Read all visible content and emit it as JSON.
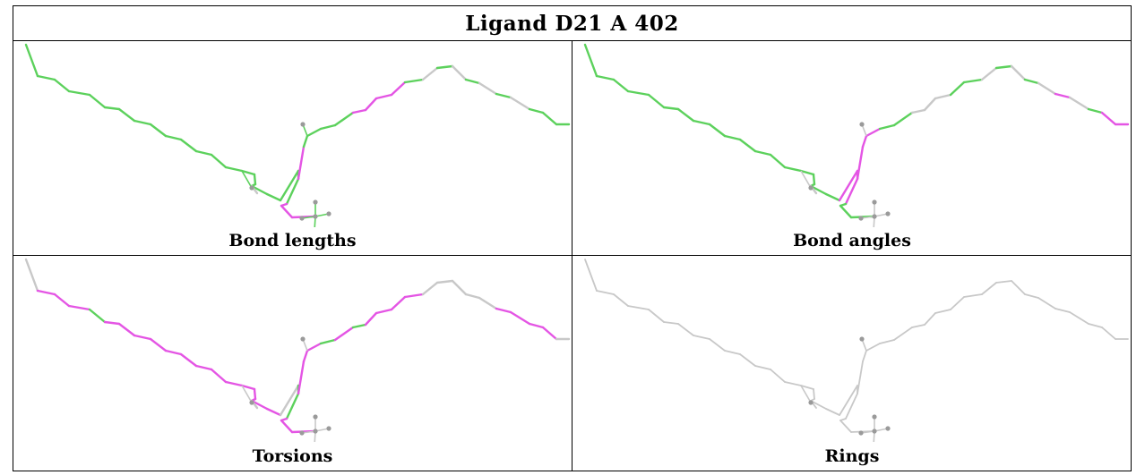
{
  "title": "Ligand D21 A 402",
  "colors": {
    "ok": "#5cd15c",
    "outlier": "#e455e4",
    "none": "#c8c8c8",
    "atom": "#9a9a9a"
  },
  "panels": [
    {
      "caption": "Bond lengths",
      "coloring": {
        "outlier_bonds": [
          23,
          24,
          25,
          26,
          31,
          32,
          33,
          34
        ],
        "grey_bonds": [
          22,
          36,
          38,
          40,
          42
        ]
      }
    },
    {
      "caption": "Bond angles",
      "coloring": {
        "outlier_bonds": [
          19,
          20,
          21,
          26,
          27,
          28,
          41,
          44,
          45
        ],
        "grey_bonds": [
          22,
          31,
          32,
          33,
          36,
          38,
          40,
          42
        ]
      }
    },
    {
      "caption": "Torsions",
      "coloring": {
        "outlier_bonds": [
          1,
          2,
          3,
          5,
          6,
          7,
          8,
          9,
          10,
          11,
          12,
          13,
          14,
          15,
          16,
          17,
          18,
          23,
          24,
          25,
          26,
          27,
          28,
          30,
          32,
          33,
          34,
          35,
          41,
          42,
          43,
          44
        ],
        "grey_bonds": [
          0,
          19,
          22,
          36,
          37,
          38,
          39,
          40,
          45
        ]
      }
    },
    {
      "caption": "Rings",
      "coloring": {
        "all_grey": true
      }
    }
  ]
}
